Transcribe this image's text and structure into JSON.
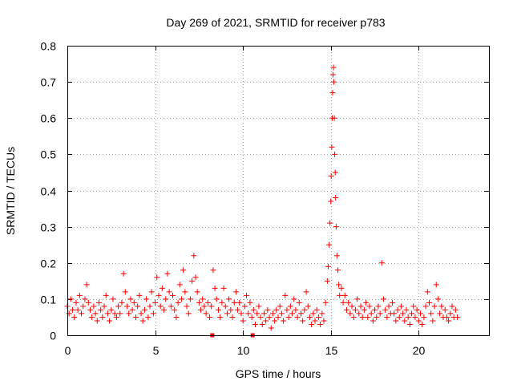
{
  "chart_data": {
    "type": "scatter",
    "title": "Day 269 of 2021, SRMTID for receiver p783",
    "xlabel": "GPS time / hours",
    "ylabel": "SRMTID / TECUs",
    "xlim": [
      0,
      24
    ],
    "ylim": [
      0,
      0.8
    ],
    "xticks": [
      0,
      5,
      10,
      15,
      20
    ],
    "yticks": [
      0,
      0.1,
      0.2,
      0.3,
      0.4,
      0.5,
      0.6,
      0.7,
      0.8
    ],
    "xtick_labels": [
      "0",
      "5",
      "10",
      "15",
      "20"
    ],
    "ytick_labels": [
      "0",
      "0.1",
      "0.2",
      "0.3",
      "0.4",
      "0.5",
      "0.6",
      "0.7",
      "0.8"
    ],
    "grid": true,
    "series": [
      {
        "name": "SRMTID",
        "marker": "plus",
        "color": "#ff0000",
        "points": [
          [
            0.0,
            0.08
          ],
          [
            0.1,
            0.06
          ],
          [
            0.2,
            0.1
          ],
          [
            0.3,
            0.07
          ],
          [
            0.4,
            0.05
          ],
          [
            0.5,
            0.09
          ],
          [
            0.6,
            0.07
          ],
          [
            0.7,
            0.11
          ],
          [
            0.8,
            0.06
          ],
          [
            0.9,
            0.08
          ],
          [
            1.0,
            0.1
          ],
          [
            1.1,
            0.14
          ],
          [
            1.2,
            0.09
          ],
          [
            1.3,
            0.07
          ],
          [
            1.4,
            0.05
          ],
          [
            1.5,
            0.08
          ],
          [
            1.6,
            0.06
          ],
          [
            1.7,
            0.04
          ],
          [
            1.8,
            0.09
          ],
          [
            1.9,
            0.07
          ],
          [
            2.0,
            0.05
          ],
          [
            2.1,
            0.08
          ],
          [
            2.2,
            0.11
          ],
          [
            2.3,
            0.06
          ],
          [
            2.4,
            0.04
          ],
          [
            2.5,
            0.07
          ],
          [
            2.6,
            0.1
          ],
          [
            2.7,
            0.06
          ],
          [
            2.8,
            0.05
          ],
          [
            2.9,
            0.08
          ],
          [
            3.0,
            0.06
          ],
          [
            3.1,
            0.09
          ],
          [
            3.2,
            0.17
          ],
          [
            3.3,
            0.12
          ],
          [
            3.4,
            0.08
          ],
          [
            3.5,
            0.06
          ],
          [
            3.6,
            0.1
          ],
          [
            3.7,
            0.07
          ],
          [
            3.8,
            0.09
          ],
          [
            3.9,
            0.05
          ],
          [
            4.0,
            0.08
          ],
          [
            4.1,
            0.11
          ],
          [
            4.2,
            0.06
          ],
          [
            4.3,
            0.04
          ],
          [
            4.4,
            0.07
          ],
          [
            4.5,
            0.1
          ],
          [
            4.6,
            0.05
          ],
          [
            4.7,
            0.08
          ],
          [
            4.8,
            0.12
          ],
          [
            4.9,
            0.06
          ],
          [
            5.0,
            0.09
          ],
          [
            5.1,
            0.16
          ],
          [
            5.2,
            0.11
          ],
          [
            5.3,
            0.08
          ],
          [
            5.4,
            0.13
          ],
          [
            5.5,
            0.07
          ],
          [
            5.6,
            0.1
          ],
          [
            5.7,
            0.17
          ],
          [
            5.8,
            0.12
          ],
          [
            5.9,
            0.08
          ],
          [
            6.0,
            0.11
          ],
          [
            6.1,
            0.07
          ],
          [
            6.2,
            0.05
          ],
          [
            6.3,
            0.09
          ],
          [
            6.4,
            0.14
          ],
          [
            6.5,
            0.1
          ],
          [
            6.6,
            0.18
          ],
          [
            6.7,
            0.12
          ],
          [
            6.8,
            0.08
          ],
          [
            6.9,
            0.06
          ],
          [
            7.0,
            0.1
          ],
          [
            7.1,
            0.15
          ],
          [
            7.2,
            0.22
          ],
          [
            7.3,
            0.16
          ],
          [
            7.4,
            0.12
          ],
          [
            7.5,
            0.09
          ],
          [
            7.6,
            0.07
          ],
          [
            7.7,
            0.1
          ],
          [
            7.8,
            0.08
          ],
          [
            7.9,
            0.06
          ],
          [
            8.0,
            0.09
          ],
          [
            8.1,
            0.05
          ],
          [
            8.2,
            0.08
          ],
          [
            8.3,
            0.18
          ],
          [
            8.4,
            0.13
          ],
          [
            8.5,
            0.1
          ],
          [
            8.6,
            0.07
          ],
          [
            8.7,
            0.05
          ],
          [
            8.8,
            0.09
          ],
          [
            8.9,
            0.13
          ],
          [
            9.0,
            0.08
          ],
          [
            9.1,
            0.06
          ],
          [
            9.2,
            0.1
          ],
          [
            9.3,
            0.07
          ],
          [
            9.4,
            0.05
          ],
          [
            9.5,
            0.09
          ],
          [
            9.6,
            0.12
          ],
          [
            9.7,
            0.07
          ],
          [
            9.8,
            0.09
          ],
          [
            9.9,
            0.06
          ],
          [
            10.0,
            0.04
          ],
          [
            10.1,
            0.08
          ],
          [
            10.2,
            0.11
          ],
          [
            10.3,
            0.06
          ],
          [
            10.4,
            0.09
          ],
          [
            10.5,
            0.05
          ],
          [
            10.6,
            0.07
          ],
          [
            10.7,
            0.03
          ],
          [
            10.8,
            0.06
          ],
          [
            10.9,
            0.08
          ],
          [
            11.0,
            0.05
          ],
          [
            11.1,
            0.03
          ],
          [
            11.2,
            0.06
          ],
          [
            11.3,
            0.04
          ],
          [
            11.4,
            0.07
          ],
          [
            11.5,
            0.05
          ],
          [
            11.6,
            0.02
          ],
          [
            11.7,
            0.06
          ],
          [
            11.8,
            0.04
          ],
          [
            11.9,
            0.07
          ],
          [
            12.0,
            0.05
          ],
          [
            12.1,
            0.08
          ],
          [
            12.2,
            0.06
          ],
          [
            12.3,
            0.04
          ],
          [
            12.4,
            0.11
          ],
          [
            12.5,
            0.07
          ],
          [
            12.6,
            0.05
          ],
          [
            12.7,
            0.08
          ],
          [
            12.8,
            0.06
          ],
          [
            12.9,
            0.1
          ],
          [
            13.0,
            0.07
          ],
          [
            13.1,
            0.05
          ],
          [
            13.2,
            0.09
          ],
          [
            13.3,
            0.06
          ],
          [
            13.4,
            0.04
          ],
          [
            13.5,
            0.07
          ],
          [
            13.6,
            0.12
          ],
          [
            13.7,
            0.08
          ],
          [
            13.8,
            0.05
          ],
          [
            13.9,
            0.03
          ],
          [
            14.0,
            0.06
          ],
          [
            14.1,
            0.04
          ],
          [
            14.2,
            0.07
          ],
          [
            14.3,
            0.05
          ],
          [
            14.4,
            0.03
          ],
          [
            14.5,
            0.06
          ],
          [
            14.6,
            0.04
          ],
          [
            14.7,
            0.09
          ],
          [
            14.8,
            0.15
          ],
          [
            14.85,
            0.19
          ],
          [
            14.9,
            0.25
          ],
          [
            14.95,
            0.31
          ],
          [
            15.0,
            0.37
          ],
          [
            15.02,
            0.44
          ],
          [
            15.05,
            0.52
          ],
          [
            15.08,
            0.6
          ],
          [
            15.1,
            0.67
          ],
          [
            15.12,
            0.72
          ],
          [
            15.15,
            0.74
          ],
          [
            15.17,
            0.7
          ],
          [
            15.2,
            0.6
          ],
          [
            15.22,
            0.5
          ],
          [
            15.25,
            0.45
          ],
          [
            15.27,
            0.38
          ],
          [
            15.3,
            0.3
          ],
          [
            15.35,
            0.22
          ],
          [
            15.4,
            0.18
          ],
          [
            15.45,
            0.14
          ],
          [
            15.5,
            0.11
          ],
          [
            15.6,
            0.13
          ],
          [
            15.7,
            0.09
          ],
          [
            15.8,
            0.11
          ],
          [
            15.9,
            0.07
          ],
          [
            16.0,
            0.09
          ],
          [
            16.1,
            0.06
          ],
          [
            16.2,
            0.08
          ],
          [
            16.3,
            0.05
          ],
          [
            16.4,
            0.07
          ],
          [
            16.5,
            0.1
          ],
          [
            16.6,
            0.06
          ],
          [
            16.7,
            0.08
          ],
          [
            16.8,
            0.05
          ],
          [
            16.9,
            0.07
          ],
          [
            17.0,
            0.09
          ],
          [
            17.1,
            0.05
          ],
          [
            17.2,
            0.08
          ],
          [
            17.3,
            0.06
          ],
          [
            17.4,
            0.04
          ],
          [
            17.5,
            0.07
          ],
          [
            17.6,
            0.05
          ],
          [
            17.7,
            0.08
          ],
          [
            17.8,
            0.06
          ],
          [
            17.9,
            0.2
          ],
          [
            18.0,
            0.1
          ],
          [
            18.1,
            0.07
          ],
          [
            18.2,
            0.05
          ],
          [
            18.3,
            0.08
          ],
          [
            18.4,
            0.06
          ],
          [
            18.5,
            0.09
          ],
          [
            18.6,
            0.06
          ],
          [
            18.7,
            0.04
          ],
          [
            18.8,
            0.07
          ],
          [
            18.9,
            0.05
          ],
          [
            19.0,
            0.08
          ],
          [
            19.1,
            0.06
          ],
          [
            19.2,
            0.04
          ],
          [
            19.3,
            0.07
          ],
          [
            19.4,
            0.05
          ],
          [
            19.5,
            0.03
          ],
          [
            19.6,
            0.06
          ],
          [
            19.7,
            0.08
          ],
          [
            19.8,
            0.05
          ],
          [
            19.9,
            0.07
          ],
          [
            20.0,
            0.04
          ],
          [
            20.1,
            0.06
          ],
          [
            20.2,
            0.03
          ],
          [
            20.3,
            0.05
          ],
          [
            20.4,
            0.08
          ],
          [
            20.5,
            0.12
          ],
          [
            20.6,
            0.09
          ],
          [
            20.7,
            0.06
          ],
          [
            20.8,
            0.04
          ],
          [
            20.9,
            0.08
          ],
          [
            21.0,
            0.14
          ],
          [
            21.1,
            0.1
          ],
          [
            21.2,
            0.06
          ],
          [
            21.3,
            0.08
          ],
          [
            21.4,
            0.05
          ],
          [
            21.5,
            0.07
          ],
          [
            21.6,
            0.05
          ],
          [
            21.7,
            0.04
          ],
          [
            21.8,
            0.06
          ],
          [
            21.9,
            0.08
          ],
          [
            22.0,
            0.05
          ],
          [
            22.1,
            0.07
          ],
          [
            22.2,
            0.05
          ]
        ]
      },
      {
        "name": "SRMTID-extra",
        "marker": "square",
        "color": "#ff0000",
        "points": [
          [
            8.25,
            0.0
          ],
          [
            10.55,
            0.0
          ]
        ]
      }
    ]
  }
}
